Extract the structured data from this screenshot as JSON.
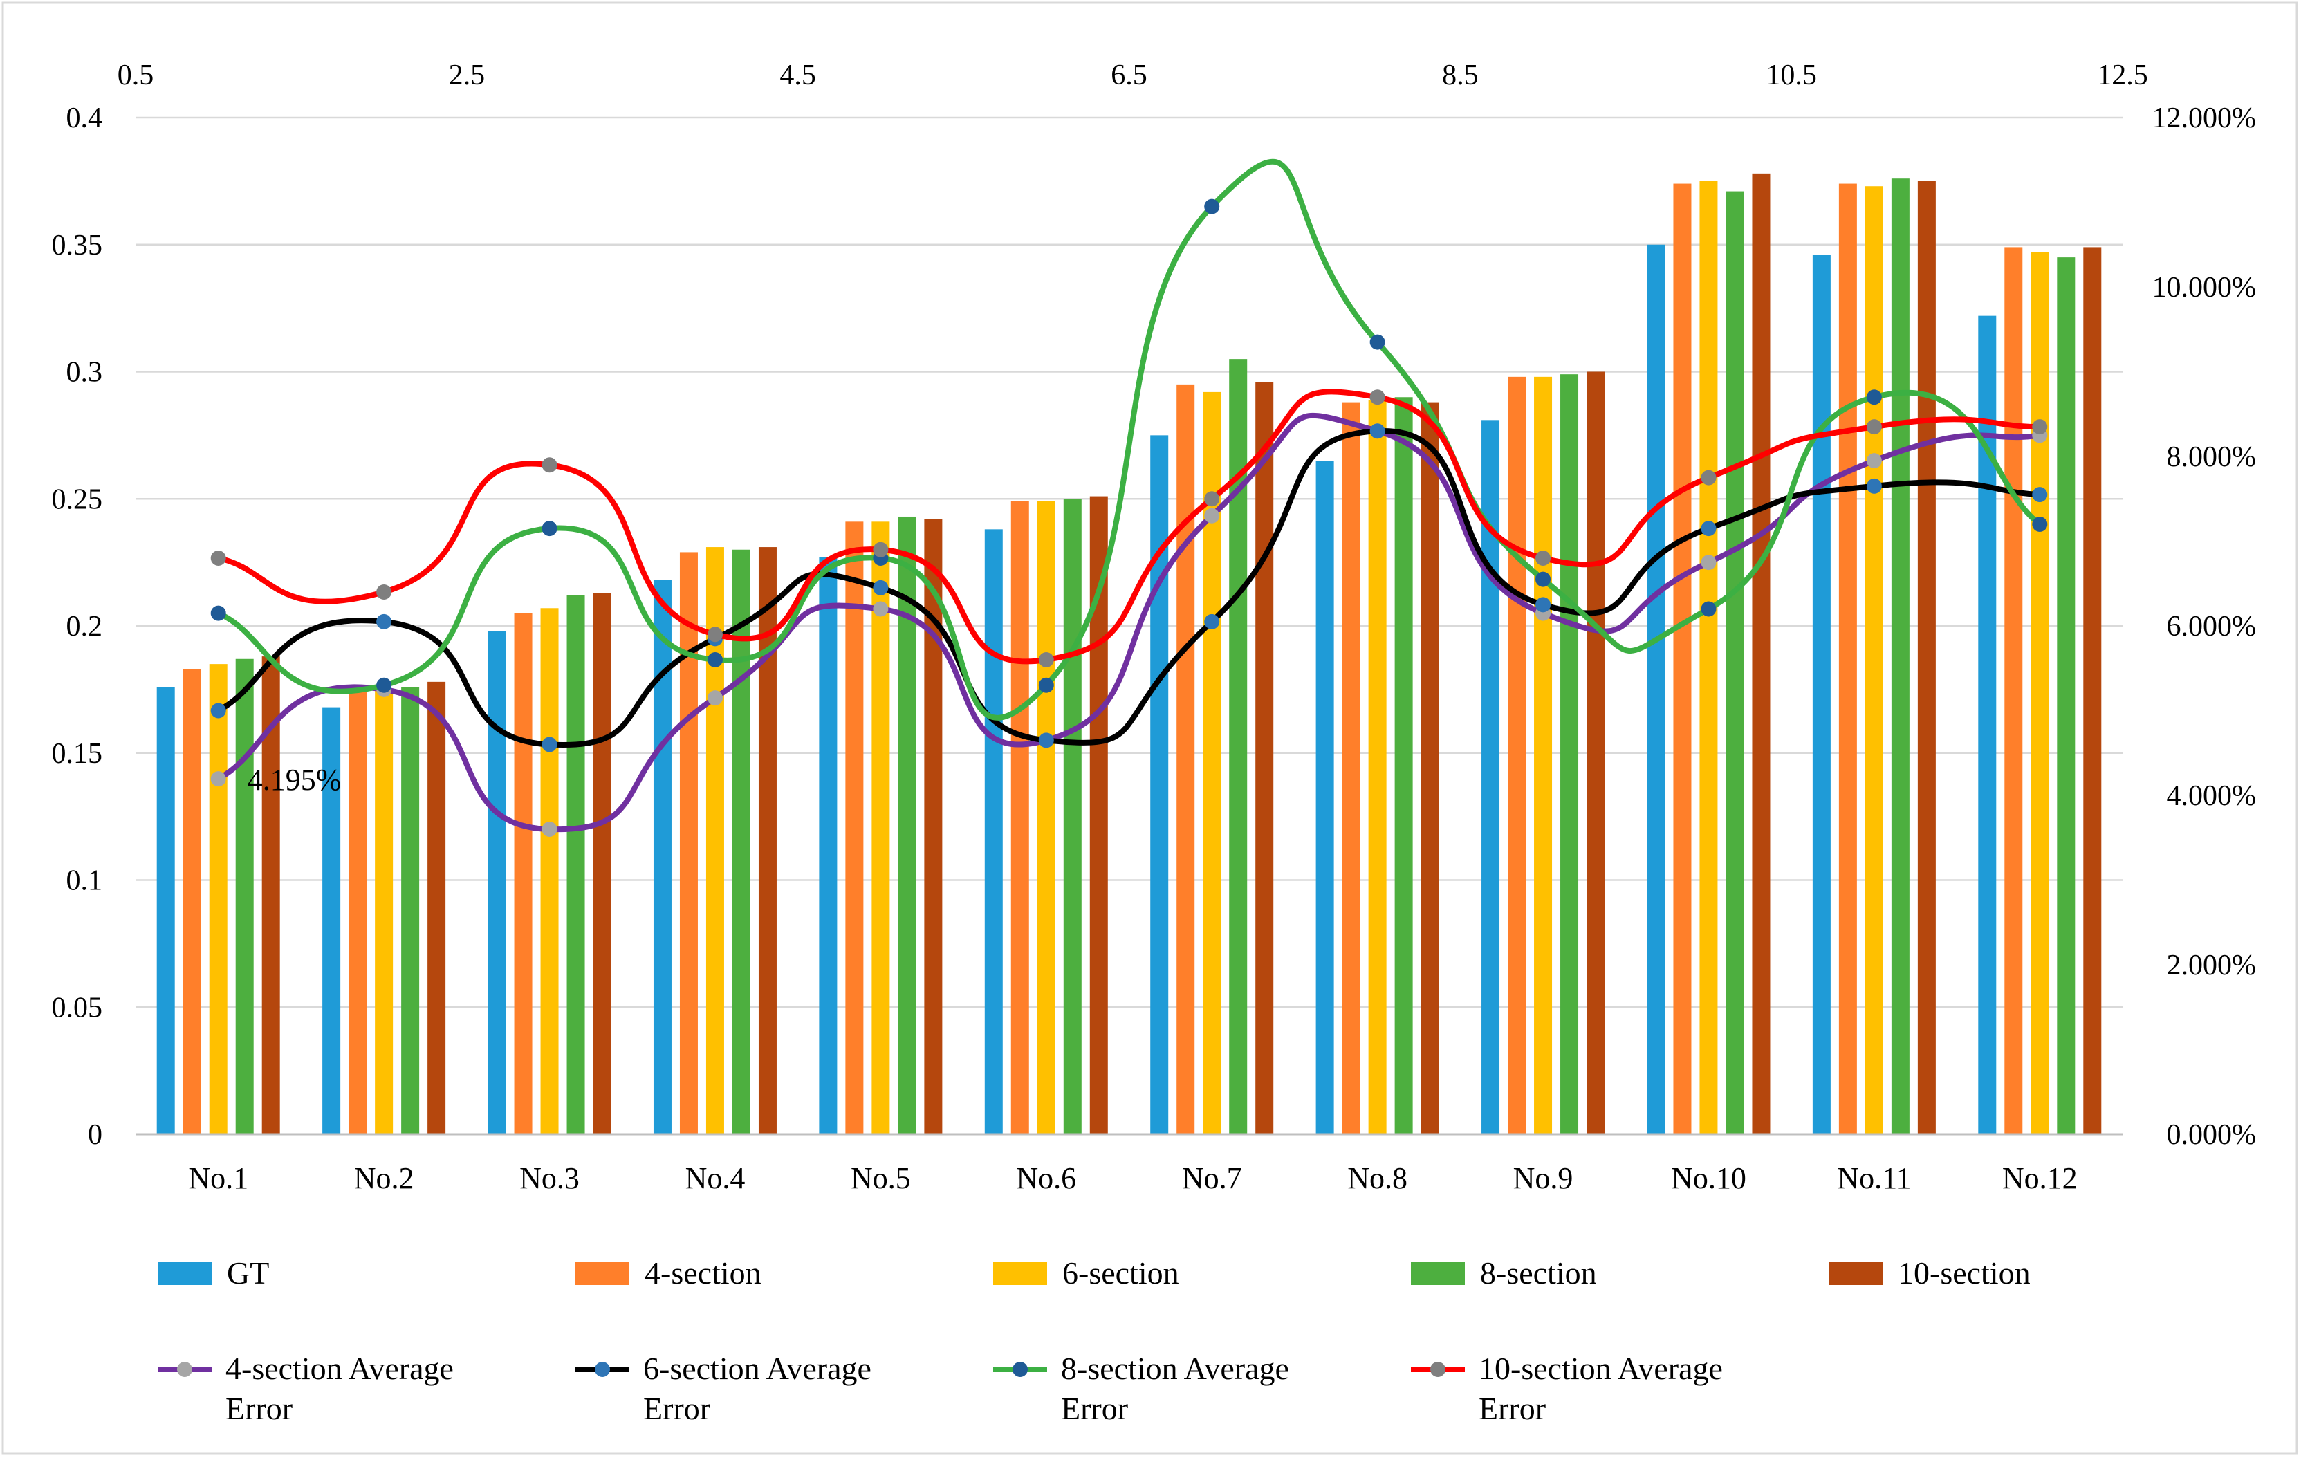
{
  "chart_data": {
    "type": "bar",
    "categories": [
      "No.1",
      "No.2",
      "No.3",
      "No.4",
      "No.5",
      "No.6",
      "No.7",
      "No.8",
      "No.9",
      "No.10",
      "No.11",
      "No.12"
    ],
    "series": [
      {
        "name": "GT",
        "type": "bar",
        "axis": "left",
        "color": "#1F9BD7",
        "values": [
          0.176,
          0.168,
          0.198,
          0.218,
          0.227,
          0.238,
          0.275,
          0.265,
          0.281,
          0.35,
          0.346,
          0.322
        ]
      },
      {
        "name": "4-section",
        "type": "bar",
        "axis": "left",
        "color": "#FF7F2A",
        "values": [
          0.183,
          0.174,
          0.205,
          0.229,
          0.241,
          0.249,
          0.295,
          0.288,
          0.298,
          0.374,
          0.374,
          0.349
        ]
      },
      {
        "name": "6-section",
        "type": "bar",
        "axis": "left",
        "color": "#FFC000",
        "values": [
          0.185,
          0.175,
          0.207,
          0.231,
          0.241,
          0.249,
          0.292,
          0.289,
          0.298,
          0.375,
          0.373,
          0.347
        ]
      },
      {
        "name": "8-section",
        "type": "bar",
        "axis": "left",
        "color": "#4DAF3F",
        "values": [
          0.187,
          0.176,
          0.212,
          0.23,
          0.243,
          0.25,
          0.305,
          0.29,
          0.299,
          0.371,
          0.376,
          0.345
        ]
      },
      {
        "name": "10-section",
        "type": "bar",
        "axis": "left",
        "color": "#B5470D",
        "values": [
          0.188,
          0.178,
          0.213,
          0.231,
          0.242,
          0.251,
          0.296,
          0.288,
          0.3,
          0.378,
          0.375,
          0.349
        ]
      },
      {
        "name": "4-section Average Error",
        "type": "line",
        "axis": "right",
        "color": "#7030A0",
        "marker": "#A6A6A6",
        "values": [
          4.195,
          5.25,
          3.6,
          5.15,
          6.2,
          4.65,
          7.3,
          8.3,
          6.15,
          6.75,
          7.95,
          8.25
        ]
      },
      {
        "name": "6-section Average Error",
        "type": "line",
        "axis": "right",
        "color": "#000000",
        "marker": "#2E75B6",
        "values": [
          5.0,
          6.05,
          4.6,
          5.85,
          6.45,
          4.65,
          6.05,
          8.3,
          6.25,
          7.15,
          7.65,
          7.55
        ]
      },
      {
        "name": "8-section Average Error",
        "type": "line",
        "axis": "right",
        "color": "#3CB043",
        "marker": "#1F5A96",
        "values": [
          6.15,
          5.3,
          7.15,
          5.6,
          6.8,
          5.3,
          10.95,
          9.35,
          6.55,
          6.2,
          8.7,
          7.2
        ]
      },
      {
        "name": "10-section Average Error",
        "type": "line",
        "axis": "right",
        "color": "#FF0000",
        "marker": "#7F7F7F",
        "values": [
          6.8,
          6.4,
          7.9,
          5.9,
          6.9,
          5.6,
          7.5,
          8.7,
          6.8,
          7.75,
          8.35,
          8.35
        ]
      }
    ],
    "left_axis": {
      "min": 0,
      "max": 0.4,
      "ticks": [
        "0",
        "0.05",
        "0.1",
        "0.15",
        "0.2",
        "0.25",
        "0.3",
        "0.35",
        "0.4"
      ]
    },
    "right_axis": {
      "min": 0,
      "max": 12,
      "ticks": [
        "0.000%",
        "2.000%",
        "4.000%",
        "6.000%",
        "8.000%",
        "10.000%",
        "12.000%"
      ]
    },
    "top_axis": {
      "min": 0.5,
      "max": 12.5,
      "ticks": [
        "0.5",
        "2.5",
        "4.5",
        "6.5",
        "8.5",
        "10.5",
        "12.5"
      ]
    },
    "annotation": {
      "text": "4.195%",
      "series": "4-section Average Error",
      "index": 0
    },
    "grid": true,
    "legend": {
      "position": "bottom"
    },
    "title": "",
    "xlabel": "",
    "ylabel": ""
  }
}
